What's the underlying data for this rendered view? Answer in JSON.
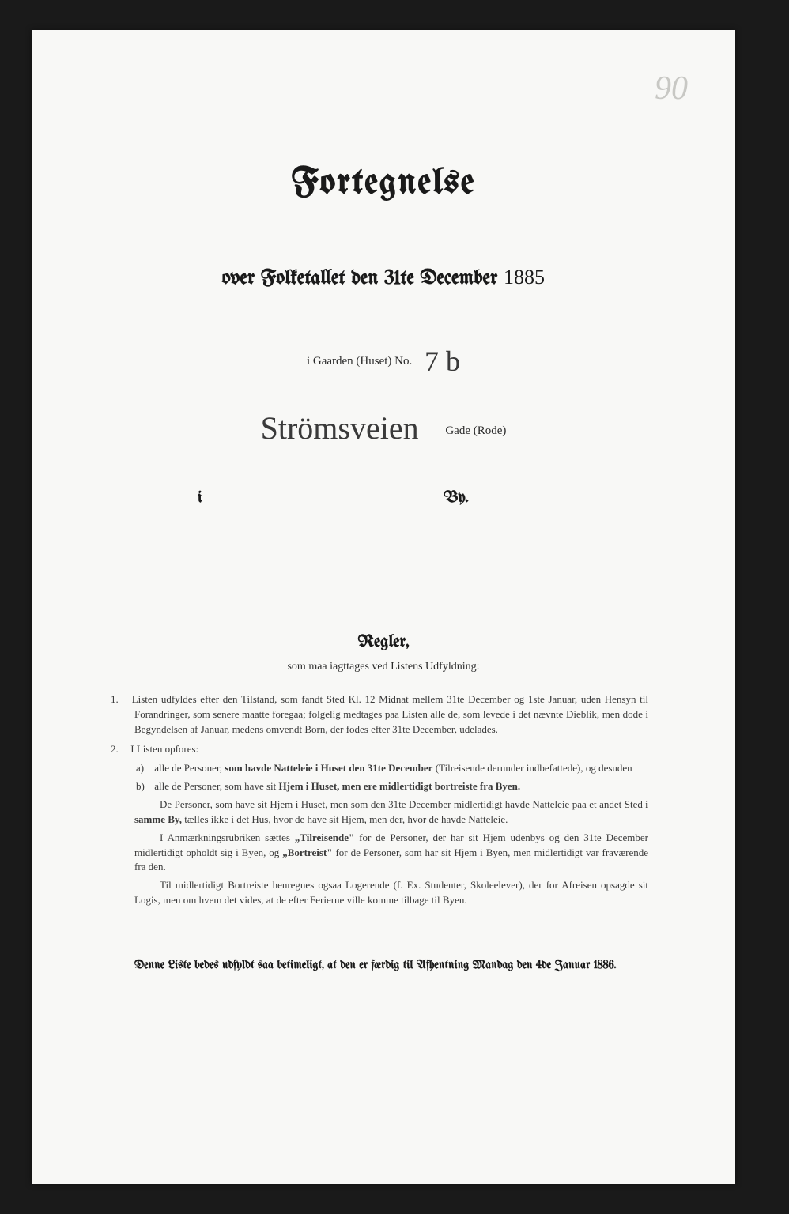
{
  "corner_number": "90",
  "title": "Fortegnelse",
  "subtitle_prefix": "over Folketallet den 31te December",
  "year": "1885",
  "gaarden_label": "i Gaarden (Huset) No.",
  "house_number": "7 b",
  "street_name": "Strömsveien",
  "gade_label": "Gade (Rode)",
  "by_i": "i",
  "by_label": "By.",
  "regler_heading": "Regler,",
  "regler_sub": "som maa iagttages ved Listens Udfyldning:",
  "rules": {
    "rule1_num": "1.",
    "rule1": "Listen udfyldes efter den Tilstand, som fandt Sted Kl. 12 Midnat mellem 31te December og 1ste Januar, uden Hensyn til Forandringer, som senere maatte foregaa; folgelig medtages paa Listen alle de, som levede i det nævnte Dieblik, men dode i Begyndelsen af Januar, medens omvendt Born, der fodes efter 31te December, udelades.",
    "rule2_num": "2.",
    "rule2": "I Listen opfores:",
    "rule2a_label": "a)",
    "rule2a": "alle de Personer, som havde Natteleie i Huset den 31te December (Tilreisende derunder indbefattede), og desuden",
    "rule2b_label": "b)",
    "rule2b": "alle de Personer, som have sit Hjem i Huset, men ere midlertidigt bortreiste fra Byen.",
    "para1": "De Personer, som have sit Hjem i Huset, men som den 31te December midlertidigt havde Natteleie paa et andet Sted i samme By, tælles ikke i det Hus, hvor de have sit Hjem, men der, hvor de havde Natteleie.",
    "para2": "I Anmærkningsrubriken sættes „Tilreisende\" for de Personer, der har sit Hjem udenbys og den 31te December midlertidigt opholdt sig i Byen, og „Bortreist\" for de Personer, som har sit Hjem i Byen, men midlertidigt var fraværende fra den.",
    "para3": "Til midlertidigt Bortreiste henregnes ogsaa Logerende (f. Ex. Studenter, Skoleelever), der for Afreisen opsagde sit Logis, men om hvem det vides, at de efter Ferierne ville komme tilbage til Byen."
  },
  "footer": "Denne Liste bedes udfyldt saa betimeligt, at den er færdig til Afhentning Mandag den 4de Januar 1886."
}
